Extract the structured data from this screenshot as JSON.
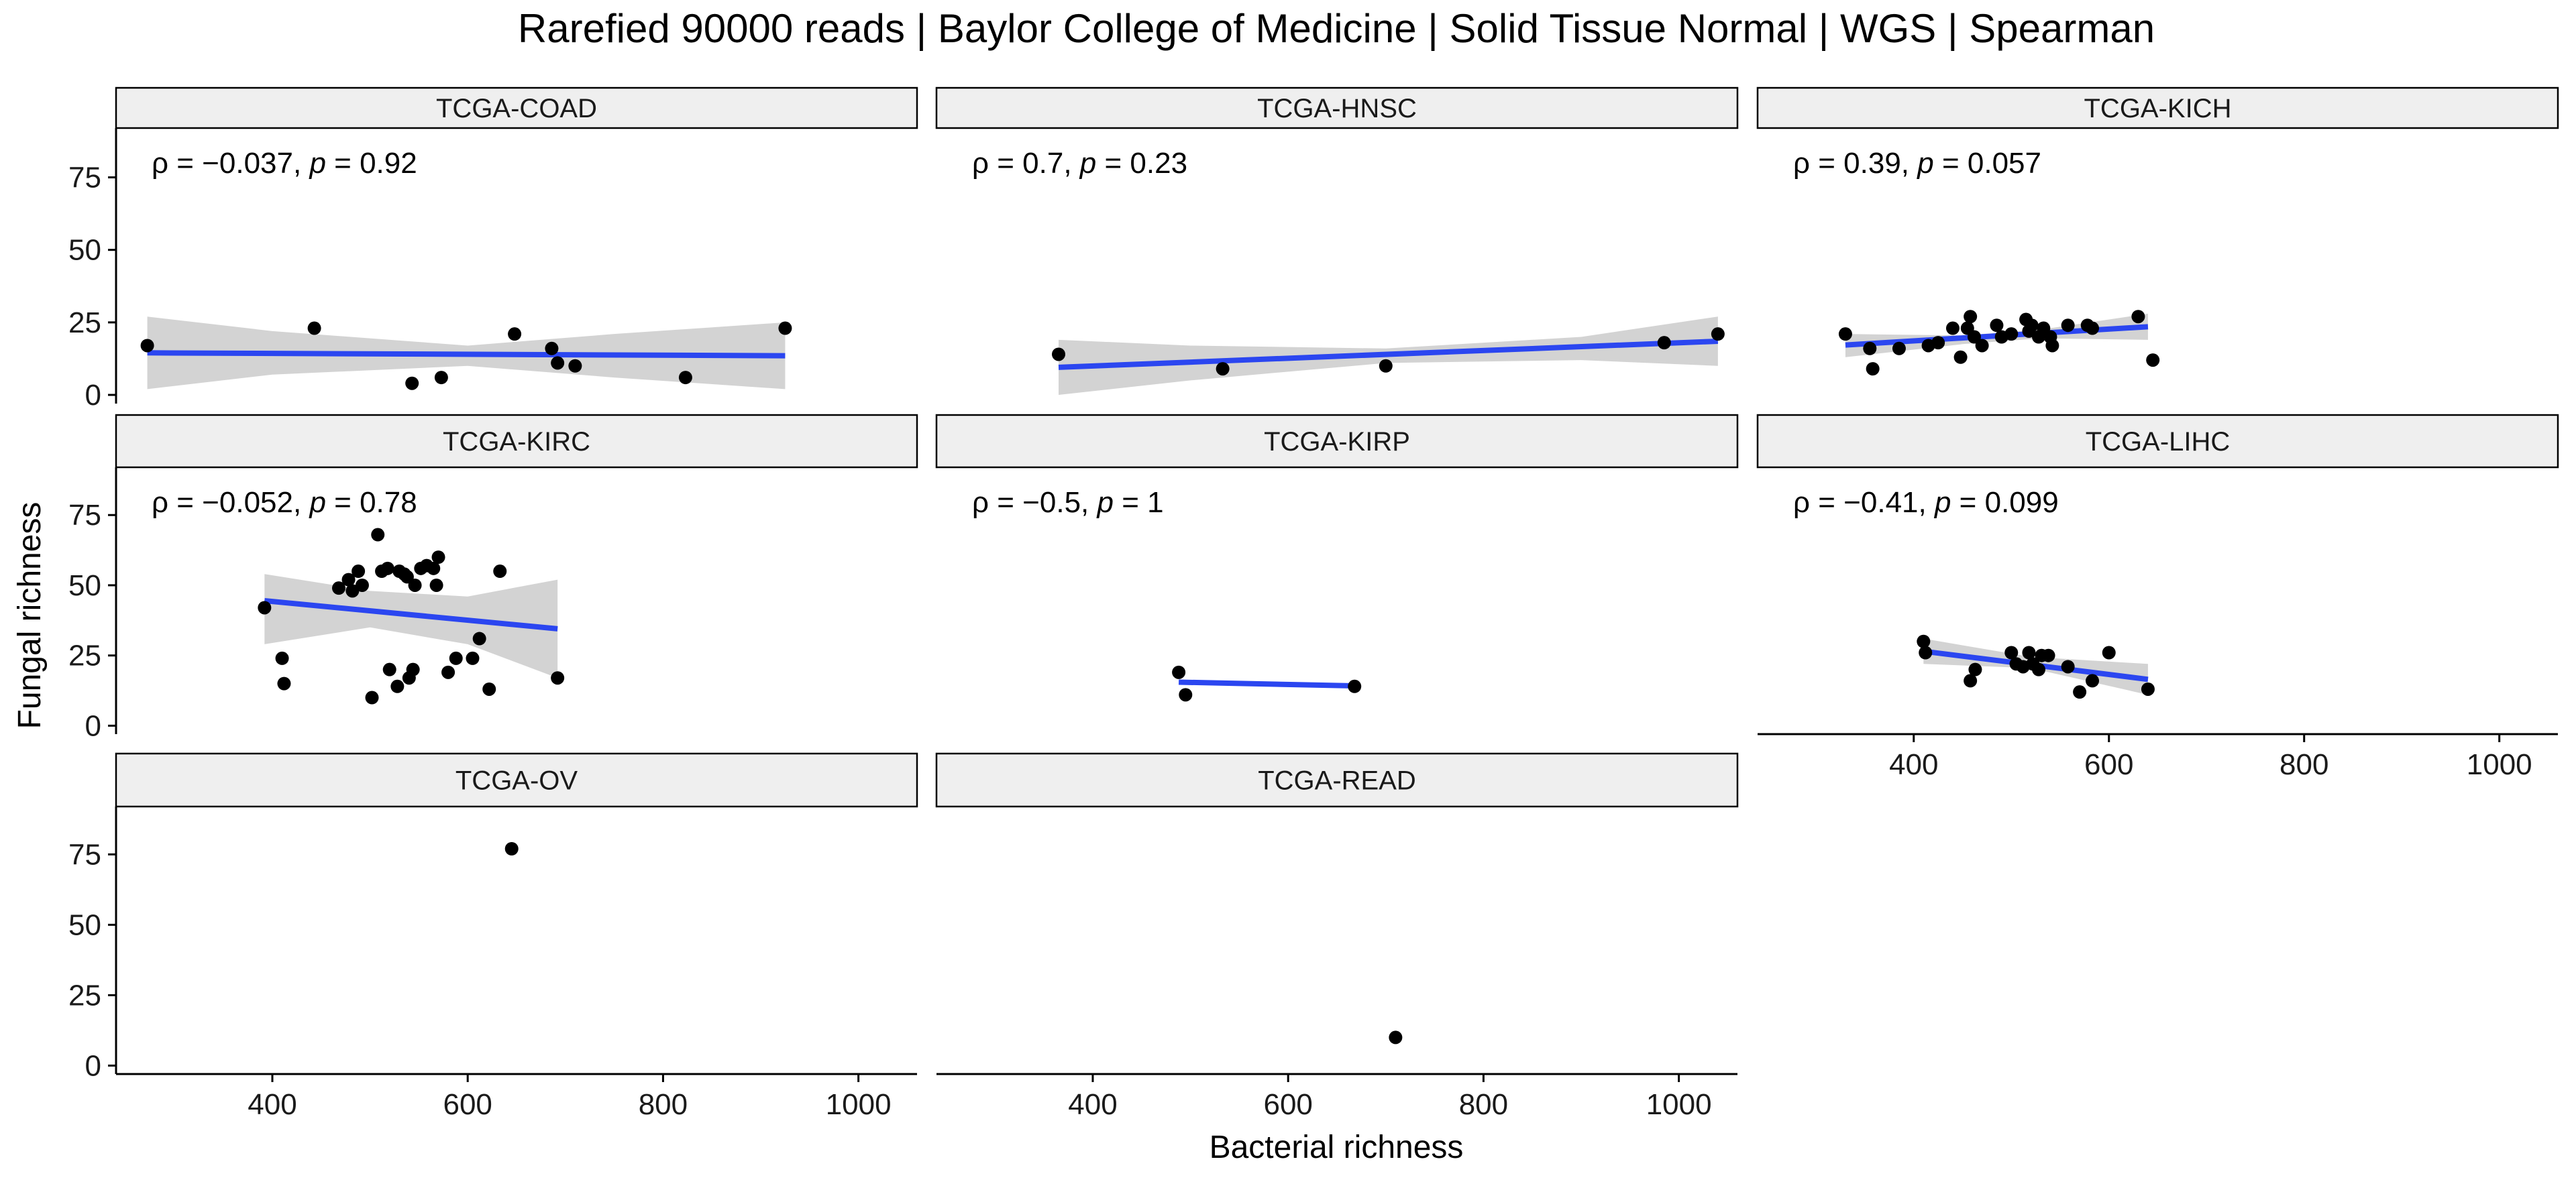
{
  "title": "Rarefied 90000 reads | Baylor College of Medicine | Solid Tissue Normal | WGS | Spearman",
  "chart_data": {
    "type": "scatter",
    "title": "Rarefied 90000 reads | Baylor College of Medicine | Solid Tissue Normal | WGS | Spearman",
    "xlabel": "Bacterial richness",
    "ylabel": "Fungal richness",
    "xlim": [
      240,
      1060
    ],
    "ylim": [
      -3,
      92
    ],
    "x_ticks": [
      "400",
      "600",
      "800",
      "1000"
    ],
    "y_ticks": [
      "0",
      "25",
      "50",
      "75"
    ],
    "grid": false,
    "colors": {
      "fit_line": "#2b46f0",
      "confidence_band": "#d1d1d1",
      "points": "#000000",
      "strip": "#efefef"
    },
    "panels": [
      {
        "name": "TCGA-COAD",
        "stat_rho": "−0.037",
        "stat_p": "0.92",
        "points": [
          [
            272,
            17
          ],
          [
            443,
            23
          ],
          [
            543,
            4
          ],
          [
            573,
            6
          ],
          [
            648,
            21
          ],
          [
            686,
            16
          ],
          [
            692,
            11
          ],
          [
            710,
            10
          ],
          [
            823,
            6
          ],
          [
            925,
            23
          ]
        ],
        "fit": [
          [
            272,
            14.5
          ],
          [
            925,
            13.5
          ]
        ],
        "band": [
          [
            272,
            27,
            2
          ],
          [
            400,
            22,
            7
          ],
          [
            600,
            17,
            10
          ],
          [
            750,
            21,
            6
          ],
          [
            925,
            25,
            2
          ]
        ]
      },
      {
        "name": "TCGA-HNSC",
        "stat_rho": "0.7",
        "stat_p": "0.23",
        "points": [
          [
            365,
            14
          ],
          [
            533,
            9
          ],
          [
            700,
            10
          ],
          [
            985,
            18
          ],
          [
            1040,
            21
          ]
        ],
        "fit": [
          [
            365,
            9.5
          ],
          [
            1040,
            18.5
          ]
        ],
        "band": [
          [
            365,
            19,
            0
          ],
          [
            500,
            17,
            5
          ],
          [
            700,
            16,
            11
          ],
          [
            900,
            20,
            12
          ],
          [
            1040,
            27,
            10
          ]
        ]
      },
      {
        "name": "TCGA-KICH",
        "stat_rho": "0.39",
        "stat_p": "0.057",
        "points": [
          [
            330,
            21
          ],
          [
            355,
            16
          ],
          [
            358,
            9
          ],
          [
            385,
            16
          ],
          [
            415,
            17
          ],
          [
            425,
            18
          ],
          [
            440,
            23
          ],
          [
            448,
            13
          ],
          [
            455,
            23
          ],
          [
            458,
            27
          ],
          [
            462,
            20
          ],
          [
            470,
            17
          ],
          [
            485,
            24
          ],
          [
            490,
            20
          ],
          [
            500,
            21
          ],
          [
            515,
            26
          ],
          [
            518,
            22
          ],
          [
            521,
            24
          ],
          [
            528,
            20
          ],
          [
            533,
            23
          ],
          [
            540,
            20
          ],
          [
            542,
            17
          ],
          [
            558,
            24
          ],
          [
            578,
            24
          ],
          [
            583,
            23
          ],
          [
            630,
            27
          ],
          [
            645,
            12
          ]
        ],
        "fit": [
          [
            330,
            17.2
          ],
          [
            640,
            23.5
          ]
        ],
        "band": [
          [
            330,
            21,
            13
          ],
          [
            450,
            20.5,
            17.5
          ],
          [
            530,
            22.5,
            19.5
          ],
          [
            640,
            28,
            19
          ]
        ]
      },
      {
        "name": "TCGA-KIRC",
        "stat_rho": "−0.052",
        "stat_p": "0.78",
        "points": [
          [
            392,
            42
          ],
          [
            410,
            24
          ],
          [
            412,
            15
          ],
          [
            468,
            49
          ],
          [
            478,
            52
          ],
          [
            482,
            48
          ],
          [
            488,
            55
          ],
          [
            492,
            50
          ],
          [
            502,
            10
          ],
          [
            508,
            68
          ],
          [
            512,
            55
          ],
          [
            518,
            56
          ],
          [
            520,
            20
          ],
          [
            528,
            14
          ],
          [
            530,
            55
          ],
          [
            535,
            54
          ],
          [
            538,
            53
          ],
          [
            540,
            17
          ],
          [
            544,
            20
          ],
          [
            546,
            50
          ],
          [
            552,
            56
          ],
          [
            558,
            57
          ],
          [
            565,
            56
          ],
          [
            568,
            50
          ],
          [
            570,
            60
          ],
          [
            580,
            19
          ],
          [
            588,
            24
          ],
          [
            605,
            24
          ],
          [
            612,
            31
          ],
          [
            622,
            13
          ],
          [
            633,
            55
          ],
          [
            692,
            17
          ]
        ],
        "fit": [
          [
            392,
            44.5
          ],
          [
            692,
            34.5
          ]
        ],
        "band": [
          [
            392,
            54,
            29
          ],
          [
            500,
            48,
            35
          ],
          [
            600,
            46,
            29
          ],
          [
            692,
            52,
            17
          ]
        ]
      },
      {
        "name": "TCGA-KIRP",
        "stat_rho": "−0.5",
        "stat_p": "1",
        "points": [
          [
            488,
            19
          ],
          [
            495,
            11
          ],
          [
            668,
            14
          ]
        ],
        "fit": [
          [
            488,
            15.5
          ],
          [
            668,
            14.2
          ]
        ],
        "band": []
      },
      {
        "name": "TCGA-LIHC",
        "stat_rho": "−0.41",
        "stat_p": "0.099",
        "points": [
          [
            410,
            30
          ],
          [
            412,
            26
          ],
          [
            458,
            16
          ],
          [
            463,
            20
          ],
          [
            500,
            26
          ],
          [
            505,
            22
          ],
          [
            512,
            21
          ],
          [
            518,
            26
          ],
          [
            522,
            22
          ],
          [
            528,
            20
          ],
          [
            531,
            25
          ],
          [
            538,
            25
          ],
          [
            558,
            21
          ],
          [
            570,
            12
          ],
          [
            583,
            16
          ],
          [
            600,
            26
          ],
          [
            640,
            13
          ]
        ],
        "fit": [
          [
            410,
            26.5
          ],
          [
            640,
            16.5
          ]
        ],
        "band": [
          [
            410,
            31,
            22
          ],
          [
            520,
            24.5,
            20.5
          ],
          [
            640,
            22,
            11
          ]
        ]
      },
      {
        "name": "TCGA-OV",
        "stat_rho": "",
        "stat_p": "",
        "points": [
          [
            645,
            77
          ]
        ],
        "fit": [],
        "band": []
      },
      {
        "name": "TCGA-READ",
        "stat_rho": "",
        "stat_p": "",
        "points": [
          [
            710,
            10
          ]
        ],
        "fit": [],
        "band": []
      }
    ]
  }
}
